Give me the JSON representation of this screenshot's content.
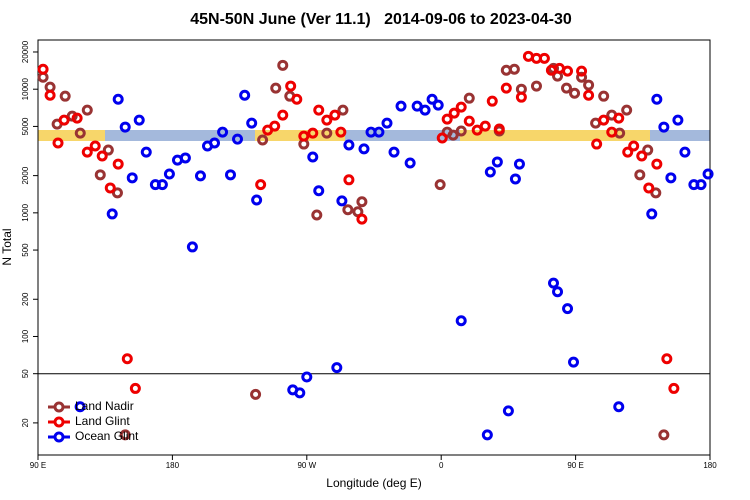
{
  "chart_data": {
    "type": "scatter",
    "title": "45N-50N June (Ver 11.1)   2014-09-06 to 2023-04-30",
    "xlabel": "Longitude (deg E)",
    "ylabel": "N Total",
    "xlim": [
      90,
      540
    ],
    "xticks": [
      {
        "value": 90,
        "label": "90 E"
      },
      180,
      {
        "value": 270,
        "label": "90 W"
      },
      {
        "value": 360,
        "label": "0"
      },
      {
        "value": 450,
        "label": "90 E"
      },
      {
        "value": 540,
        "label": "180"
      }
    ],
    "ylim": [
      11,
      25000
    ],
    "log_y": true,
    "yticks": [
      20,
      50,
      100,
      200,
      500,
      1000,
      2000,
      5000,
      10000,
      20000
    ],
    "hline": 50,
    "legend": "lower left",
    "series": [
      {
        "name": "Land Nadir",
        "color": "#993333",
        "x": [
          93.4,
          98.1,
          102.8,
          108.2,
          112.9,
          118.3,
          123,
          131.7,
          137.1,
          143.2,
          148.4,
          235.7,
          240.4,
          249.2,
          253.9,
          258.6,
          268,
          276.7,
          283.4,
          294.2,
          297.5,
          304.2,
          306.9,
          359.3,
          364,
          368,
          373.4,
          378.8,
          398.9,
          403.6,
          409,
          413.7,
          423.8,
          435.2,
          437.9,
          443.9,
          449.3,
          454,
          458.7,
          463.4,
          468.8,
          474.2,
          479.5,
          484.2,
          493,
          498.3,
          503.7,
          509.1
        ],
        "values": [
          12500,
          10400,
          5220,
          8780,
          6060,
          4410,
          6770,
          2030,
          3220,
          1450,
          16,
          34,
          3880,
          10200,
          15600,
          8780,
          3600,
          960,
          4410,
          6770,
          1060,
          1020,
          1230,
          1690,
          4500,
          4250,
          4590,
          8460,
          4590,
          14230,
          14500,
          10000,
          10600,
          14750,
          12750,
          10200,
          9280,
          12500,
          10800,
          5320,
          8780,
          6170,
          4410,
          6770,
          2030,
          3220,
          1450,
          16
        ]
      },
      {
        "name": "Land Glint",
        "color": "#ee0000",
        "x": [
          93.4,
          98.1,
          103.4,
          107.5,
          116.2,
          123,
          128.3,
          133,
          138.4,
          143.7,
          149.8,
          155.2,
          239.1,
          243.8,
          248.5,
          253.9,
          259.2,
          263.3,
          268,
          274,
          278,
          283.4,
          288.8,
          292.8,
          298.2,
          306.9,
          360.7,
          364,
          368.7,
          373.4,
          378.8,
          384.1,
          389.5,
          394.2,
          398.9,
          403.6,
          413.7,
          418.4,
          423.8,
          429.1,
          433.8,
          439.2,
          444.6,
          454,
          458.7,
          464.1,
          468.8,
          474.2,
          478.9,
          484.9,
          488.9,
          494.3,
          499,
          504.4,
          511.1,
          515.8
        ],
        "values": [
          14500,
          8940,
          3670,
          5620,
          5840,
          3100,
          3470,
          2880,
          1590,
          2480,
          66,
          38,
          1690,
          4670,
          5030,
          6170,
          10600,
          8300,
          4170,
          4410,
          6770,
          5620,
          6170,
          4500,
          1850,
          890,
          4030,
          5730,
          6410,
          7160,
          5520,
          4670,
          5030,
          8000,
          4760,
          10200,
          8620,
          18450,
          17770,
          17770,
          14230,
          14750,
          14000,
          14000,
          8940,
          3600,
          5620,
          4500,
          5840,
          3100,
          3470,
          2880,
          1590,
          2480,
          66,
          38
        ]
      },
      {
        "name": "Ocean Glint",
        "color": "#0000ee",
        "x": [
          118.2,
          139.7,
          143.7,
          148.4,
          153.1,
          157.8,
          162.5,
          168.6,
          173.3,
          178,
          183.4,
          188.7,
          193.4,
          198.8,
          203.5,
          208.2,
          213.6,
          218.9,
          223.6,
          228.4,
          233.1,
          236.4,
          260.6,
          265.3,
          270,
          274,
          278,
          290.1,
          293.5,
          298.2,
          308.3,
          313,
          318.3,
          323.7,
          328.4,
          333.1,
          339.2,
          343.9,
          349.2,
          353.9,
          358,
          373.4,
          392.9,
          397.6,
          405,
          409.7,
          412.4,
          390.9,
          435.2,
          437.9,
          444.6,
          448.6,
          478.9,
          501,
          504.4,
          509.1,
          513.8,
          518.5,
          523.2,
          529.2,
          534,
          538.7
        ],
        "values": [
          27,
          980,
          8300,
          4940,
          1920,
          5620,
          3100,
          1690,
          1690,
          2060,
          2670,
          2780,
          530,
          1990,
          3470,
          3670,
          4500,
          2030,
          3950,
          8940,
          5320,
          1270,
          37,
          35,
          47,
          2830,
          1510,
          56,
          1250,
          3540,
          3290,
          4500,
          4500,
          5320,
          3100,
          7290,
          2530,
          7290,
          6770,
          8300,
          7430,
          134,
          2140,
          2580,
          25,
          1880,
          2480,
          16,
          270,
          230,
          168,
          62,
          27,
          980,
          8300,
          4940,
          1920,
          5620,
          3100,
          1690,
          1690,
          2060
        ]
      }
    ]
  }
}
